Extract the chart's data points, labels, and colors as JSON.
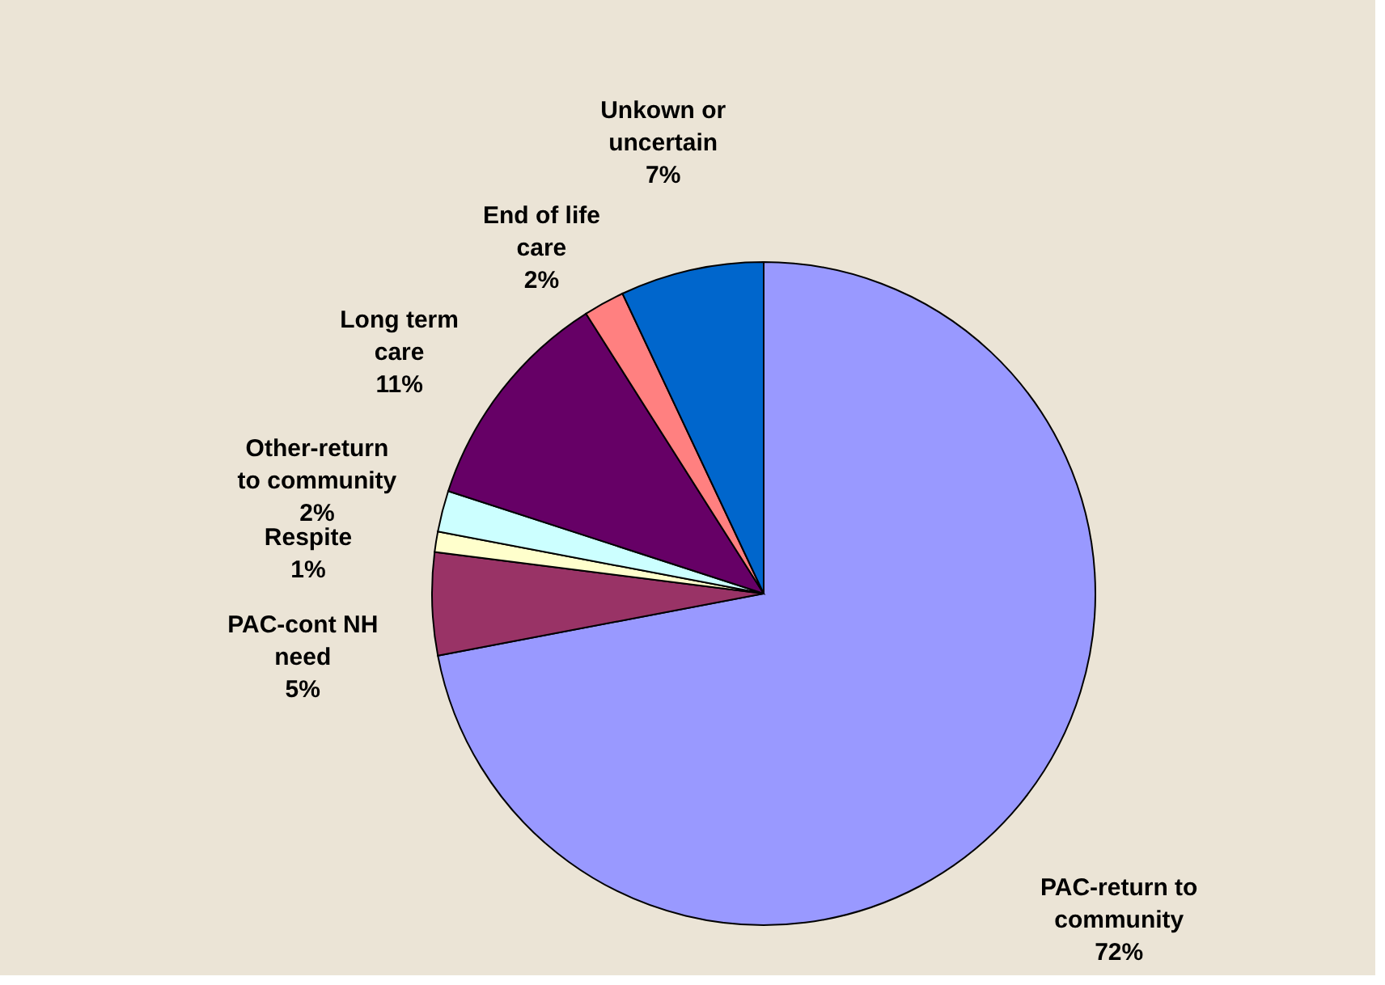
{
  "chart_data": {
    "type": "pie",
    "categories": [
      "PAC-return to community",
      "PAC-cont NH need",
      "Respite",
      "Other-return to community",
      "Long term care",
      "End of life care",
      "Unkown or uncertain"
    ],
    "values": [
      72,
      5,
      1,
      2,
      11,
      2,
      7
    ],
    "value_labels": [
      "72%",
      "5%",
      "1%",
      "2%",
      "11%",
      "2%",
      "7%"
    ],
    "colors": [
      "#9999ff",
      "#993366",
      "#ffffcc",
      "#ccffff",
      "#660066",
      "#ff8080",
      "#0066cc"
    ]
  }
}
